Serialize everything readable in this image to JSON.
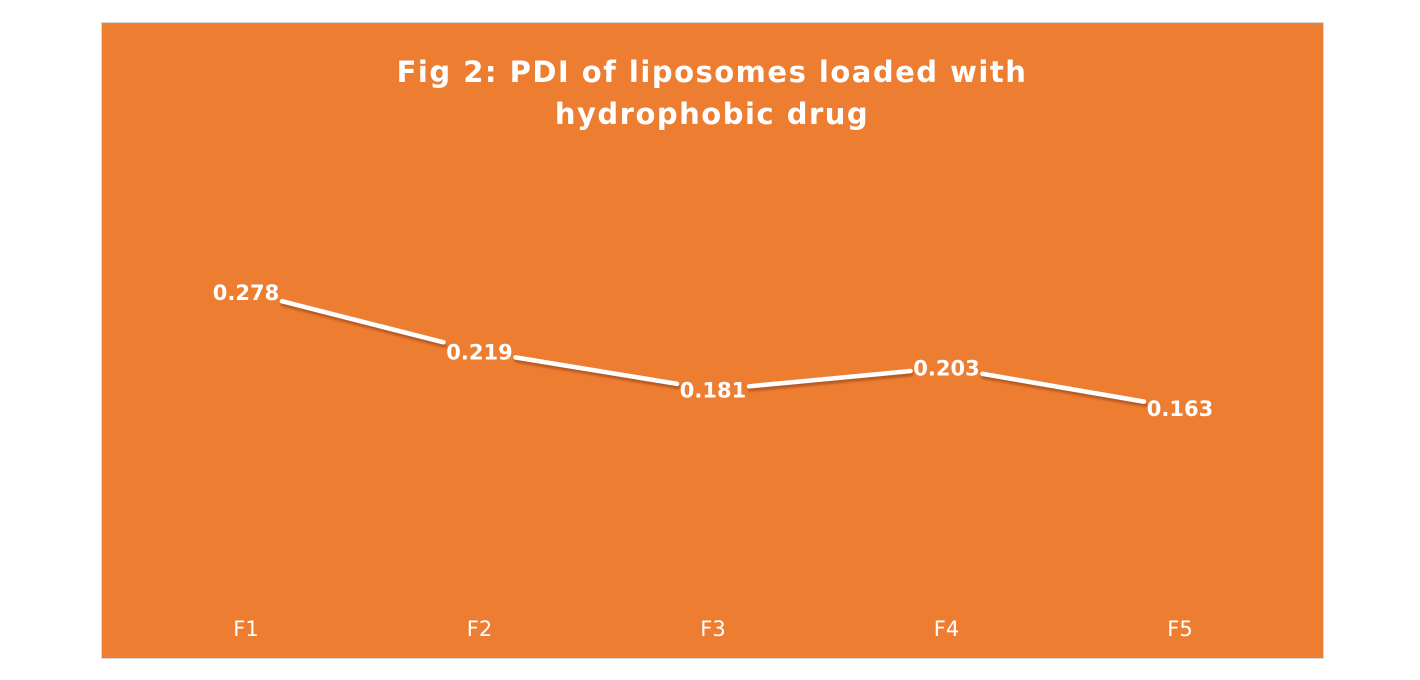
{
  "chart_data": {
    "type": "line",
    "title": "Fig 2: PDI of liposomes loaded with hydrophobic drug",
    "categories": [
      "F1",
      "F2",
      "F3",
      "F4",
      "F5"
    ],
    "series": [
      {
        "values": [
          0.278,
          0.219,
          0.181,
          0.203,
          0.163
        ]
      }
    ],
    "data_labels": [
      "0.278",
      "0.219",
      "0.181",
      "0.203",
      "0.163"
    ],
    "xlabel": "",
    "ylabel": "",
    "ylim": [
      0,
      0.3
    ],
    "drop_lines": true,
    "grid": false,
    "legend": "none",
    "colors": {
      "background": "#ED7D31",
      "line": "#FFFFFF",
      "text": "#FFFFFF"
    }
  }
}
